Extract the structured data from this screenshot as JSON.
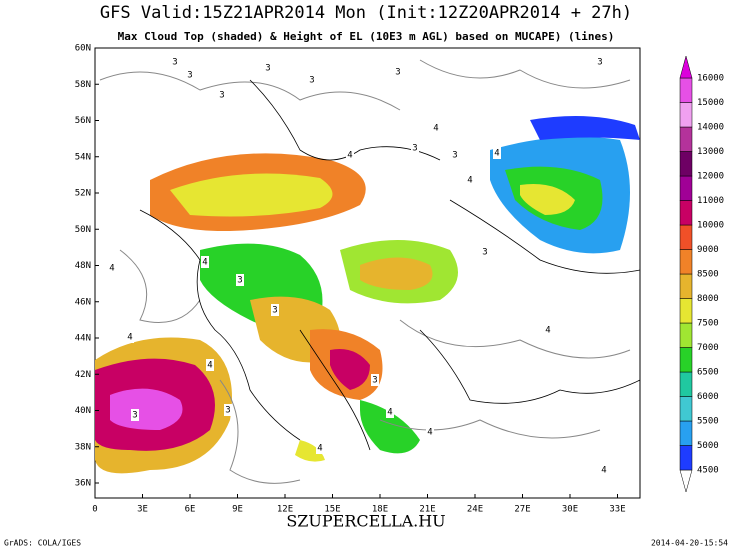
{
  "header": {
    "title": "GFS Valid:15Z21APR2014 Mon (Init:12Z20APR2014 + 27h)",
    "subtitle": "Max Cloud Top (shaded) & Height of EL (10E3 m AGL) based on MUCAPE) (lines)"
  },
  "map": {
    "lat_labels": [
      "36N",
      "38N",
      "40N",
      "42N",
      "44N",
      "46N",
      "48N",
      "50N",
      "52N",
      "54N",
      "56N",
      "58N",
      "60N"
    ],
    "lon_labels": [
      "0",
      "3E",
      "6E",
      "9E",
      "12E",
      "15E",
      "18E",
      "21E",
      "24E",
      "27E",
      "30E",
      "33E"
    ],
    "contour_labels": [
      "3",
      "3",
      "3",
      "3",
      "3",
      "3",
      "4",
      "4",
      "3",
      "4",
      "3",
      "4",
      "3",
      "4",
      "4",
      "3",
      "4",
      "4",
      "3",
      "3",
      "4",
      "3",
      "4",
      "3",
      "4",
      "4",
      "3",
      "4"
    ]
  },
  "colorbar": {
    "levels": [
      4500,
      5000,
      5500,
      6000,
      6500,
      7000,
      7500,
      8000,
      8500,
      9000,
      10000,
      11000,
      12000,
      13000,
      14000,
      15000,
      16000
    ],
    "colors": [
      "#ffffff",
      "#1e3cff",
      "#28a0f0",
      "#40c8d2",
      "#20c8a0",
      "#28d228",
      "#a0e632",
      "#e6e632",
      "#e6b42d",
      "#f08228",
      "#f05028",
      "#c80064",
      "#a00096",
      "#6e0064",
      "#b4329b",
      "#f0a0f0",
      "#e650e6",
      "#dc00dc"
    ]
  },
  "footer": {
    "left": "GrADS: COLA/IGES",
    "center": "SZUPERCELLA.HU",
    "right": "2014-04-20-15:54"
  }
}
